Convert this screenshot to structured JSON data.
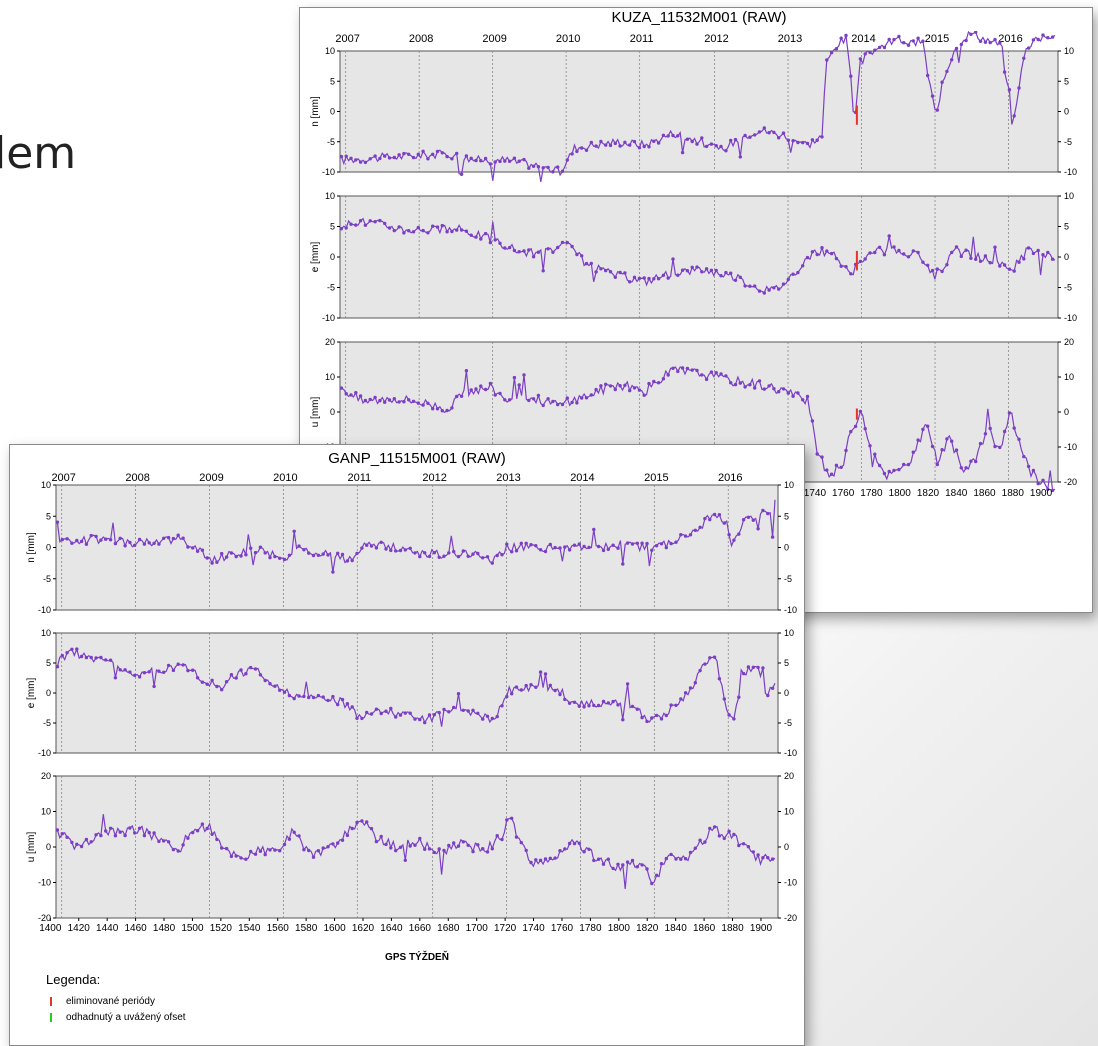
{
  "slide": {
    "title_fragment": "lem"
  },
  "legend": {
    "title": "Legenda:",
    "items": [
      {
        "label": "eliminované periódy",
        "color": "#e8332a"
      },
      {
        "label": "odhadnutý a uvážený ofset",
        "color": "#22cc22"
      }
    ]
  },
  "colors": {
    "series": "#7b3fc4",
    "plot_bg": "#e6e6e6",
    "grid": "#888888",
    "offset_marker": "#e8332a"
  },
  "chart_data": [
    {
      "type": "line",
      "title": "KUZA_11532M001 (RAW)",
      "year_labels": [
        "2007",
        "2008",
        "2009",
        "2010",
        "2011",
        "2012",
        "2013",
        "2014",
        "2015",
        "2016"
      ],
      "year_weeks": [
        1408,
        1460,
        1512,
        1564,
        1616,
        1669,
        1721,
        1773,
        1825,
        1877
      ],
      "xlim": [
        1404,
        1912
      ],
      "xlabel": "",
      "x_ticks": [
        1740,
        1760,
        1780,
        1800,
        1820,
        1840,
        1860,
        1880,
        1900
      ],
      "x_tick_labels": [
        "1740",
        "1760",
        "1780",
        "1800",
        "1820",
        "1840",
        "1860",
        "1880",
        "1900"
      ],
      "panels": [
        {
          "label": "n [mm]",
          "ylim": [
            -10,
            10
          ],
          "yticks": [
            -10,
            -5,
            0,
            5,
            10
          ],
          "anchors": [
            [
              1405,
              -8
            ],
            [
              1440,
              -7.5
            ],
            [
              1480,
              -7
            ],
            [
              1500,
              -8
            ],
            [
              1520,
              -8
            ],
            [
              1545,
              -9
            ],
            [
              1560,
              -10
            ],
            [
              1570,
              -6
            ],
            [
              1600,
              -5
            ],
            [
              1620,
              -5.5
            ],
            [
              1640,
              -3.5
            ],
            [
              1660,
              -5
            ],
            [
              1672,
              -6.5
            ],
            [
              1690,
              -4
            ],
            [
              1700,
              -3
            ],
            [
              1720,
              -4
            ],
            [
              1735,
              -5.5
            ],
            [
              1745,
              -4
            ],
            [
              1748,
              8
            ],
            [
              1755,
              11
            ],
            [
              1762,
              12
            ],
            [
              1766,
              5
            ],
            [
              1768,
              -3
            ],
            [
              1772,
              8
            ],
            [
              1780,
              10
            ],
            [
              1790,
              11
            ],
            [
              1800,
              12
            ],
            [
              1810,
              11
            ],
            [
              1816,
              12
            ],
            [
              1820,
              6
            ],
            [
              1826,
              -1
            ],
            [
              1830,
              5
            ],
            [
              1840,
              11
            ],
            [
              1850,
              13
            ],
            [
              1860,
              12
            ],
            [
              1872,
              11
            ],
            [
              1876,
              4
            ],
            [
              1880,
              -3
            ],
            [
              1884,
              4
            ],
            [
              1890,
              11
            ],
            [
              1900,
              12
            ],
            [
              1910,
              13
            ]
          ]
        },
        {
          "label": "e [mm]",
          "ylim": [
            -10,
            10
          ],
          "yticks": [
            -10,
            -5,
            0,
            5,
            10
          ],
          "anchors": [
            [
              1405,
              4
            ],
            [
              1412,
              6
            ],
            [
              1430,
              5.5
            ],
            [
              1450,
              4.5
            ],
            [
              1470,
              4.5
            ],
            [
              1490,
              4.5
            ],
            [
              1510,
              3
            ],
            [
              1530,
              1
            ],
            [
              1545,
              0.5
            ],
            [
              1565,
              2
            ],
            [
              1580,
              -1.5
            ],
            [
              1600,
              -3
            ],
            [
              1620,
              -4
            ],
            [
              1640,
              -2.5
            ],
            [
              1660,
              -2
            ],
            [
              1680,
              -3
            ],
            [
              1700,
              -5
            ],
            [
              1710,
              -5.5
            ],
            [
              1720,
              -4
            ],
            [
              1735,
              0
            ],
            [
              1745,
              1
            ],
            [
              1755,
              0
            ],
            [
              1765,
              -3
            ],
            [
              1775,
              0
            ],
            [
              1785,
              1
            ],
            [
              1800,
              1
            ],
            [
              1815,
              0
            ],
            [
              1825,
              -3
            ],
            [
              1840,
              1
            ],
            [
              1855,
              0
            ],
            [
              1870,
              -1
            ],
            [
              1880,
              -2
            ],
            [
              1890,
              1
            ],
            [
              1900,
              0.5
            ],
            [
              1910,
              0
            ]
          ]
        },
        {
          "label": "u [mm]",
          "ylim": [
            -20,
            20
          ],
          "yticks": [
            -20,
            -10,
            0,
            10,
            20
          ],
          "anchors": [
            [
              1405,
              7
            ],
            [
              1420,
              3
            ],
            [
              1440,
              4
            ],
            [
              1460,
              3
            ],
            [
              1480,
              1
            ],
            [
              1495,
              6
            ],
            [
              1510,
              7
            ],
            [
              1525,
              3
            ],
            [
              1540,
              4
            ],
            [
              1560,
              2
            ],
            [
              1580,
              5
            ],
            [
              1600,
              8
            ],
            [
              1620,
              6
            ],
            [
              1640,
              12
            ],
            [
              1660,
              11
            ],
            [
              1680,
              9
            ],
            [
              1700,
              8
            ],
            [
              1720,
              6
            ],
            [
              1735,
              3
            ],
            [
              1742,
              -12
            ],
            [
              1750,
              -18
            ],
            [
              1760,
              -15
            ],
            [
              1765,
              -6
            ],
            [
              1772,
              0
            ],
            [
              1780,
              -10
            ],
            [
              1790,
              -18
            ],
            [
              1800,
              -17
            ],
            [
              1810,
              -12
            ],
            [
              1820,
              -3
            ],
            [
              1826,
              -14
            ],
            [
              1835,
              -8
            ],
            [
              1845,
              -16
            ],
            [
              1855,
              -13
            ],
            [
              1862,
              -4
            ],
            [
              1870,
              -12
            ],
            [
              1878,
              0
            ],
            [
              1885,
              -9
            ],
            [
              1892,
              -17
            ],
            [
              1900,
              -20
            ],
            [
              1910,
              -22
            ]
          ]
        }
      ]
    },
    {
      "type": "line",
      "title": "GANP_11515M001 (RAW)",
      "year_labels": [
        "2007",
        "2008",
        "2009",
        "2010",
        "2011",
        "2012",
        "2013",
        "2014",
        "2015",
        "2016"
      ],
      "year_weeks": [
        1408,
        1460,
        1512,
        1564,
        1616,
        1669,
        1721,
        1773,
        1825,
        1877
      ],
      "xlim": [
        1404,
        1912
      ],
      "xlabel": "GPS TÝŽDEŇ",
      "x_ticks": [
        1400,
        1420,
        1440,
        1460,
        1480,
        1500,
        1520,
        1540,
        1560,
        1580,
        1600,
        1620,
        1640,
        1660,
        1680,
        1700,
        1720,
        1740,
        1760,
        1780,
        1800,
        1820,
        1840,
        1860,
        1880,
        1900
      ],
      "x_tick_labels": [
        "1400",
        "1420",
        "1440",
        "1460",
        "1480",
        "1500",
        "1520",
        "1540",
        "1560",
        "1580",
        "1600",
        "1620",
        "1640",
        "1660",
        "1680",
        "1700",
        "1720",
        "1740",
        "1760",
        "1780",
        "1800",
        "1820",
        "1840",
        "1860",
        "1880",
        "1900"
      ],
      "panels": [
        {
          "label": "n [mm]",
          "ylim": [
            -10,
            10
          ],
          "yticks": [
            -10,
            -5,
            0,
            5,
            10
          ],
          "anchors": [
            [
              1405,
              1.5
            ],
            [
              1420,
              1
            ],
            [
              1440,
              1.5
            ],
            [
              1460,
              0.5
            ],
            [
              1475,
              1
            ],
            [
              1490,
              1.5
            ],
            [
              1500,
              0
            ],
            [
              1515,
              -2
            ],
            [
              1530,
              -1
            ],
            [
              1550,
              -0.5
            ],
            [
              1565,
              -2
            ],
            [
              1575,
              0
            ],
            [
              1590,
              -1
            ],
            [
              1610,
              -2
            ],
            [
              1620,
              0.5
            ],
            [
              1640,
              0
            ],
            [
              1660,
              -1
            ],
            [
              1680,
              -1
            ],
            [
              1700,
              -1
            ],
            [
              1712,
              -2
            ],
            [
              1722,
              0
            ],
            [
              1740,
              0
            ],
            [
              1760,
              0
            ],
            [
              1780,
              0
            ],
            [
              1800,
              0.5
            ],
            [
              1820,
              0
            ],
            [
              1840,
              1
            ],
            [
              1855,
              3
            ],
            [
              1865,
              5
            ],
            [
              1875,
              4.5
            ],
            [
              1880,
              0
            ],
            [
              1888,
              4
            ],
            [
              1900,
              5.5
            ],
            [
              1910,
              5
            ]
          ]
        },
        {
          "label": "e [mm]",
          "ylim": [
            -10,
            10
          ],
          "yticks": [
            -10,
            -5,
            0,
            5,
            10
          ],
          "anchors": [
            [
              1405,
              5
            ],
            [
              1415,
              7
            ],
            [
              1430,
              5.5
            ],
            [
              1445,
              5
            ],
            [
              1460,
              3
            ],
            [
              1480,
              4
            ],
            [
              1495,
              4.5
            ],
            [
              1510,
              2
            ],
            [
              1520,
              1
            ],
            [
              1530,
              3
            ],
            [
              1545,
              4
            ],
            [
              1560,
              1
            ],
            [
              1575,
              -1
            ],
            [
              1590,
              -0.5
            ],
            [
              1605,
              -1.5
            ],
            [
              1618,
              -4
            ],
            [
              1630,
              -3
            ],
            [
              1650,
              -3.5
            ],
            [
              1665,
              -4.5
            ],
            [
              1680,
              -3
            ],
            [
              1700,
              -3
            ],
            [
              1712,
              -5
            ],
            [
              1722,
              0.5
            ],
            [
              1740,
              1
            ],
            [
              1755,
              1
            ],
            [
              1770,
              -2
            ],
            [
              1790,
              -1.5
            ],
            [
              1810,
              -2
            ],
            [
              1822,
              -5
            ],
            [
              1835,
              -3
            ],
            [
              1850,
              0
            ],
            [
              1860,
              5
            ],
            [
              1868,
              6
            ],
            [
              1875,
              -2
            ],
            [
              1880,
              -5
            ],
            [
              1888,
              3
            ],
            [
              1896,
              5
            ],
            [
              1904,
              0
            ],
            [
              1910,
              2
            ]
          ]
        },
        {
          "label": "u [mm]",
          "ylim": [
            -20,
            20
          ],
          "yticks": [
            -20,
            -10,
            0,
            10,
            20
          ],
          "anchors": [
            [
              1405,
              4
            ],
            [
              1420,
              0
            ],
            [
              1440,
              4
            ],
            [
              1460,
              5
            ],
            [
              1475,
              3
            ],
            [
              1490,
              -1
            ],
            [
              1500,
              5
            ],
            [
              1512,
              6
            ],
            [
              1520,
              0
            ],
            [
              1535,
              -3
            ],
            [
              1545,
              -1
            ],
            [
              1560,
              -1
            ],
            [
              1570,
              4
            ],
            [
              1585,
              -2
            ],
            [
              1600,
              0
            ],
            [
              1618,
              8
            ],
            [
              1630,
              2
            ],
            [
              1645,
              0
            ],
            [
              1660,
              2
            ],
            [
              1670,
              -2
            ],
            [
              1690,
              1
            ],
            [
              1705,
              -1
            ],
            [
              1718,
              3
            ],
            [
              1724,
              10
            ],
            [
              1730,
              1
            ],
            [
              1740,
              -5
            ],
            [
              1755,
              -3
            ],
            [
              1770,
              2
            ],
            [
              1780,
              -2
            ],
            [
              1800,
              -6
            ],
            [
              1815,
              -4
            ],
            [
              1825,
              -10
            ],
            [
              1835,
              -2
            ],
            [
              1850,
              -3
            ],
            [
              1865,
              5
            ],
            [
              1880,
              3
            ],
            [
              1892,
              -1
            ],
            [
              1900,
              -4
            ],
            [
              1910,
              -2
            ]
          ]
        }
      ]
    }
  ]
}
